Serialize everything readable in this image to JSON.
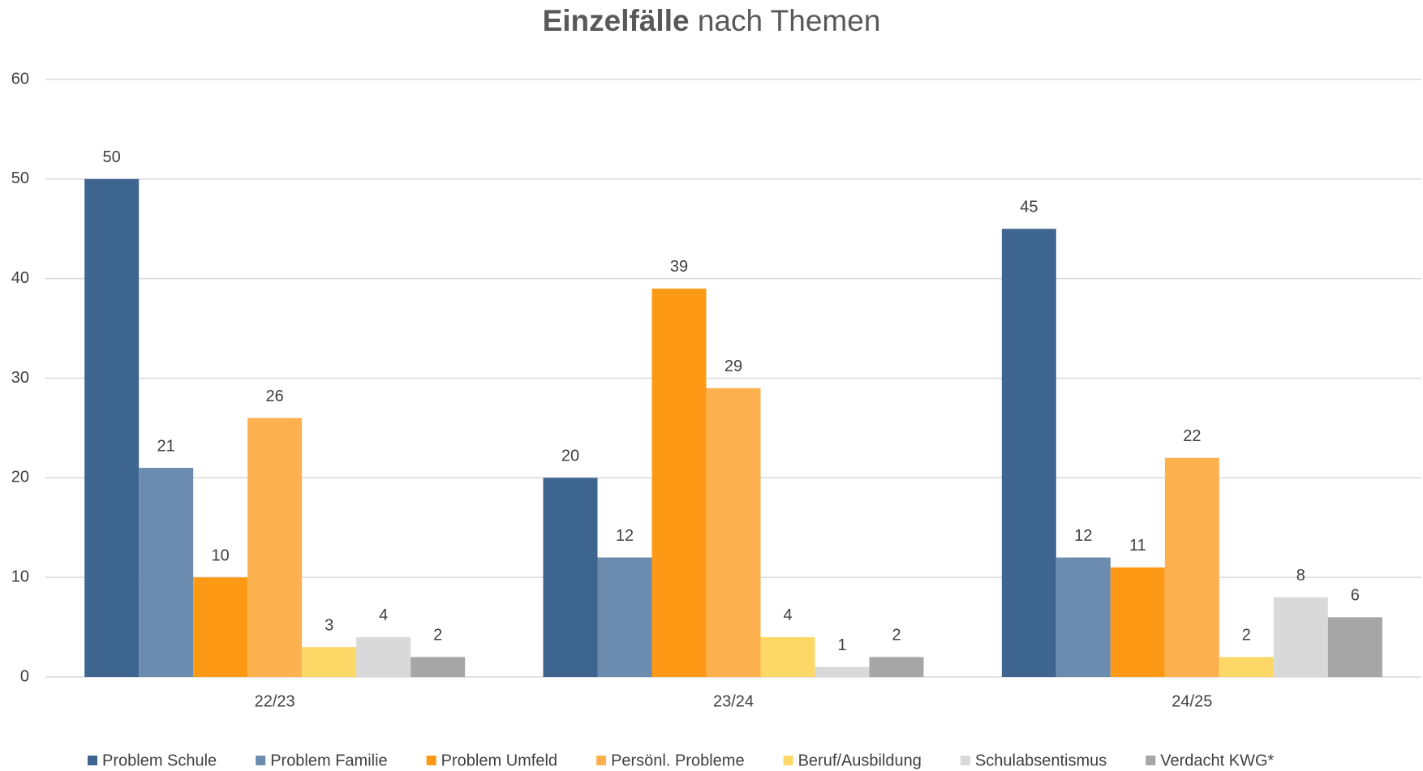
{
  "chart_data": {
    "type": "bar",
    "title": [
      "Einzelfälle",
      "nach Themen"
    ],
    "categories": [
      "22/23",
      "23/24",
      "24/25"
    ],
    "series": [
      {
        "name": "Problem Schule",
        "color": "#3e6590",
        "values": [
          50,
          20,
          45
        ]
      },
      {
        "name": "Problem Familie",
        "color": "#6b8cae",
        "values": [
          21,
          12,
          12
        ]
      },
      {
        "name": "Problem Umfeld",
        "color": "#fd9914",
        "values": [
          10,
          39,
          11
        ]
      },
      {
        "name": "Persönl. Probleme",
        "color": "#fdb14e",
        "values": [
          26,
          29,
          22
        ]
      },
      {
        "name": "Beruf/Ausbildung",
        "color": "#fed866",
        "values": [
          3,
          4,
          2
        ]
      },
      {
        "name": "Schulabsentismus",
        "color": "#d9d9d9",
        "values": [
          4,
          1,
          8
        ]
      },
      {
        "name": "Verdacht KWG*",
        "color": "#a6a6a6",
        "values": [
          2,
          2,
          6
        ]
      }
    ],
    "ylim": [
      0,
      60
    ],
    "yticks": [
      0,
      10,
      20,
      30,
      40,
      50,
      60
    ],
    "grid": true,
    "legend": "bottom"
  }
}
